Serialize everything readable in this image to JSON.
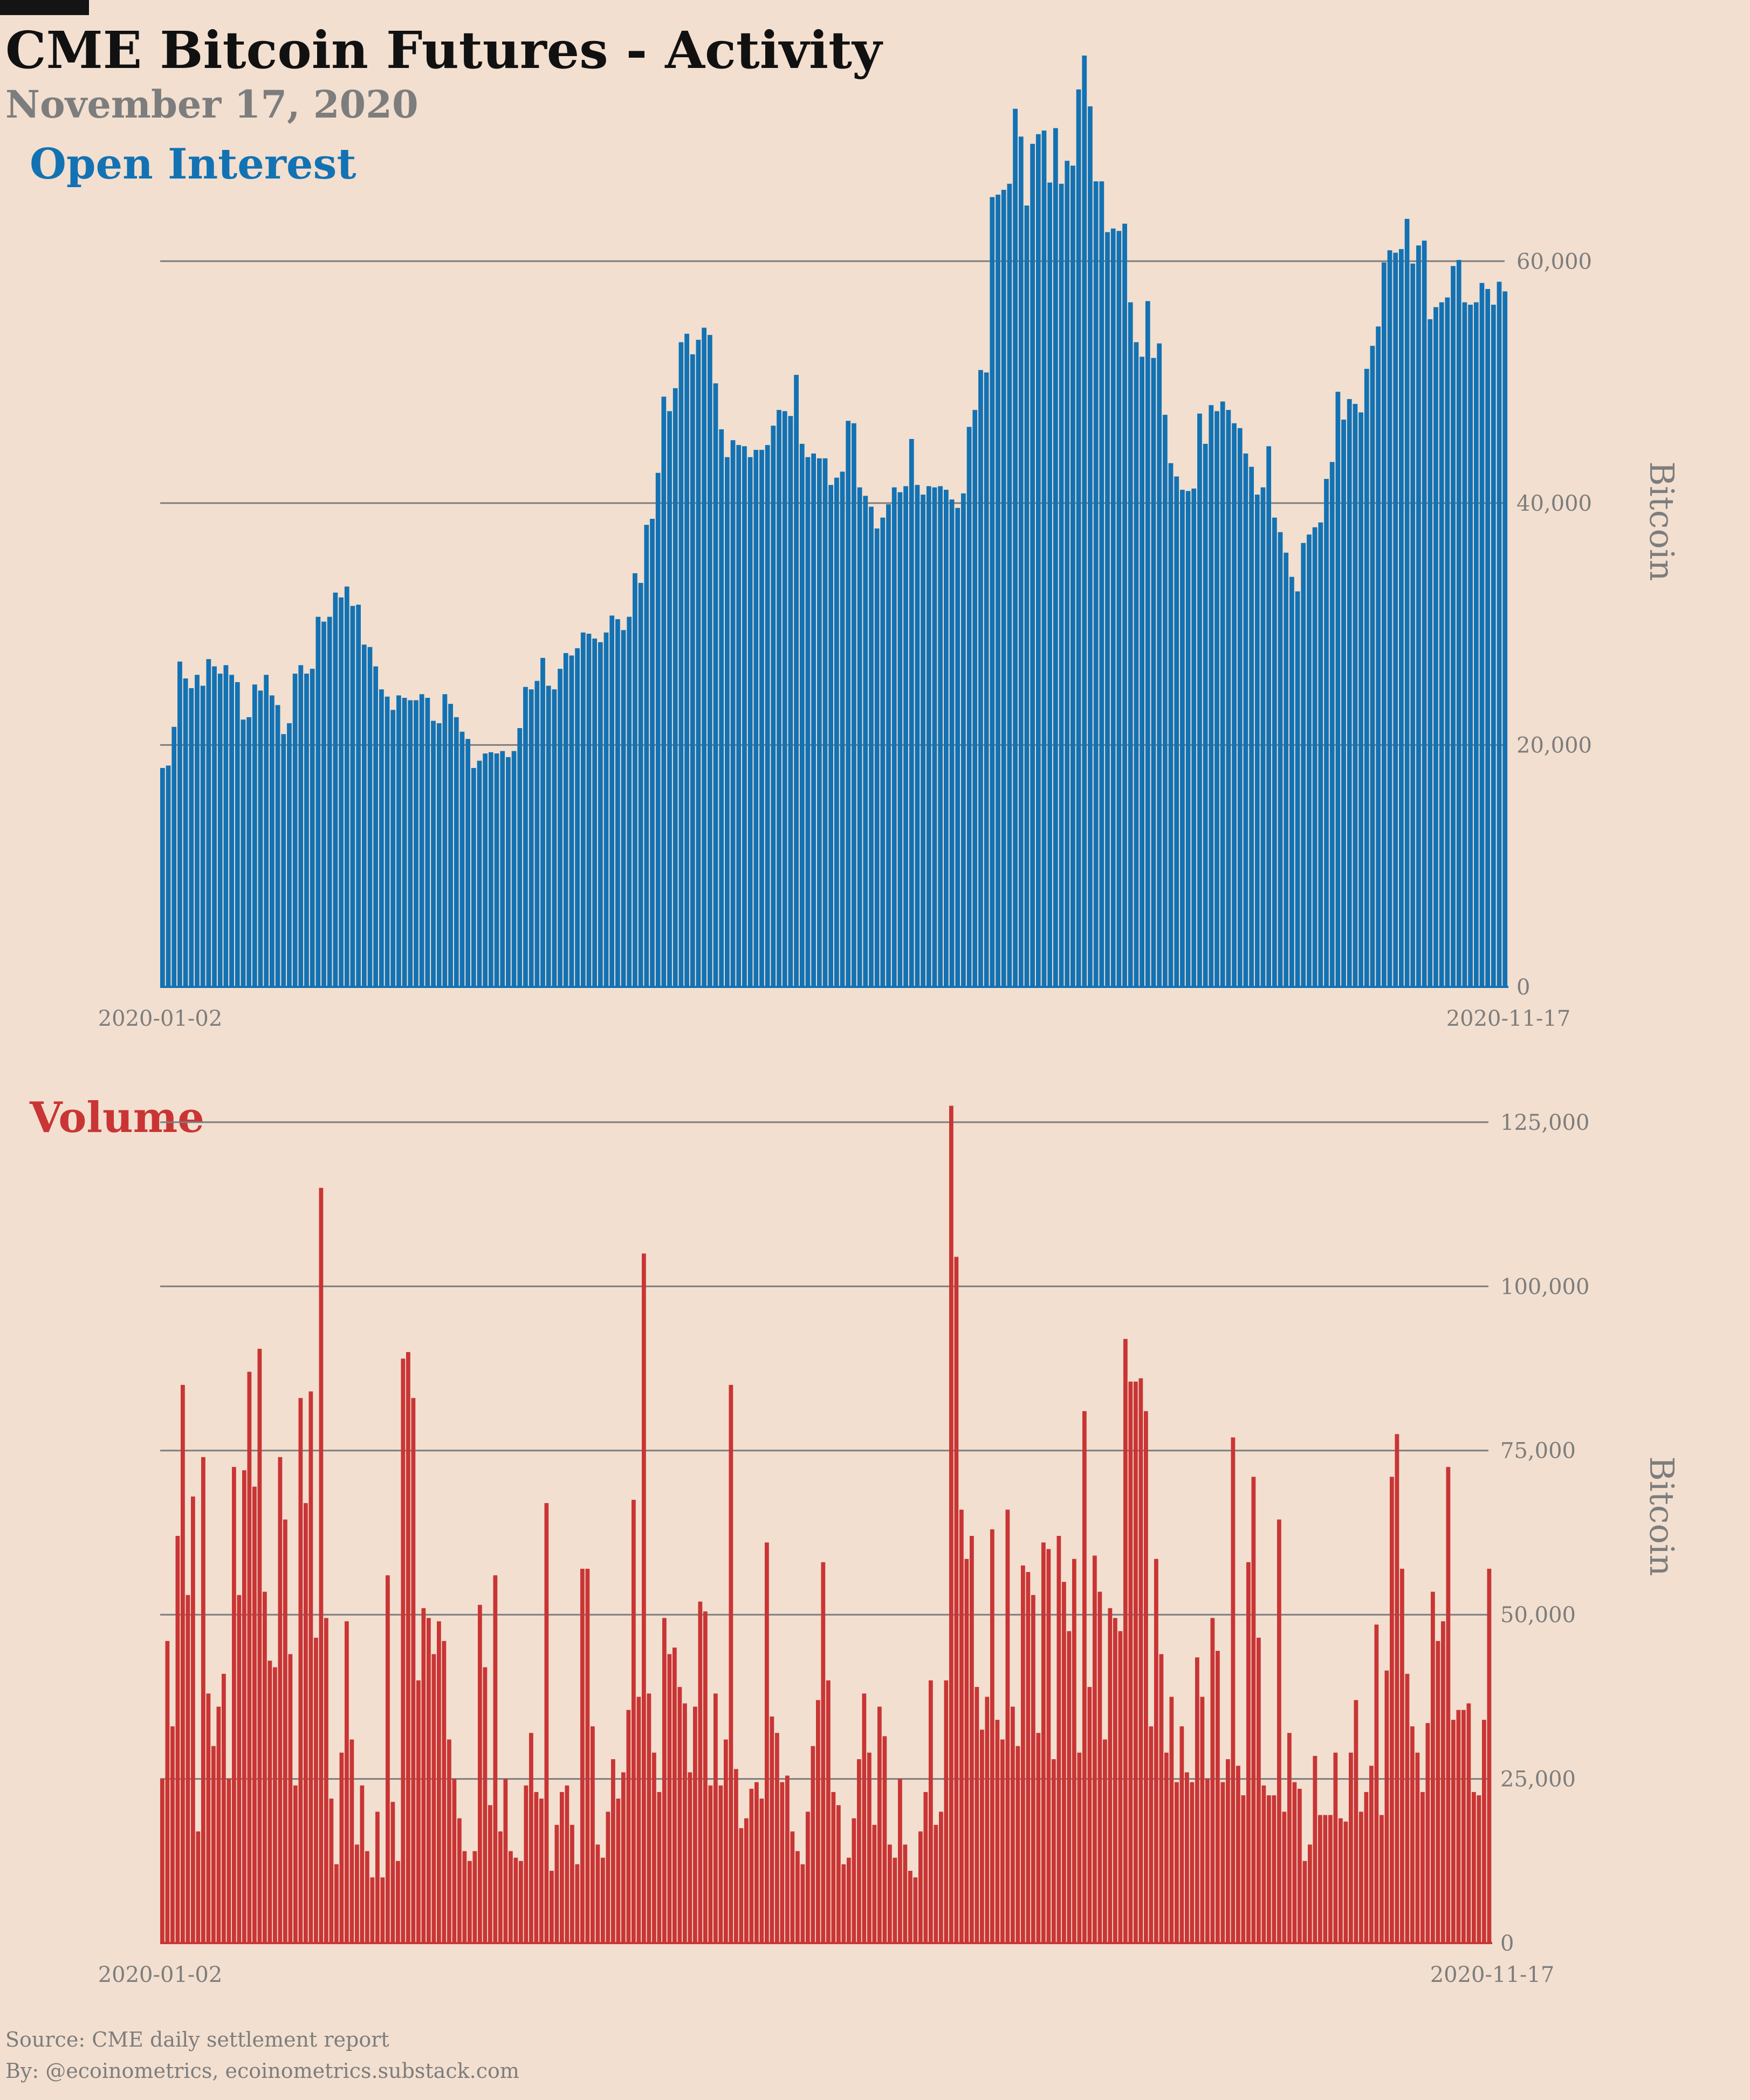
{
  "header": {
    "title": "CME Bitcoin Futures - Activity",
    "subtitle": "November 17, 2020"
  },
  "colors": {
    "background": "#f2dfcf",
    "open_interest": "#1372b3",
    "volume": "#c93535",
    "grid": "#7d7d7d",
    "muted_text": "#7d7d7d"
  },
  "chart_data": [
    {
      "type": "bar",
      "title": "Open Interest",
      "ylabel": "Bitcoin",
      "x_start_label": "2020-01-02",
      "x_end_label": "2020-11-17",
      "ylim": [
        0,
        77000
      ],
      "yticks": [
        0,
        20000,
        40000,
        60000
      ],
      "ytick_labels": [
        "0",
        "20,000",
        "40,000",
        "60,000"
      ],
      "grid": true,
      "values": [
        18100,
        18300,
        21500,
        26900,
        25500,
        24700,
        25800,
        24900,
        27100,
        26500,
        25900,
        26600,
        25800,
        25200,
        22100,
        22300,
        25000,
        24500,
        25800,
        24100,
        23300,
        20900,
        21800,
        25900,
        26600,
        25900,
        26300,
        30600,
        30200,
        30600,
        32600,
        32200,
        33100,
        31500,
        31600,
        28300,
        28100,
        26500,
        24600,
        24000,
        22900,
        24100,
        23900,
        23700,
        23700,
        24200,
        23900,
        22000,
        21800,
        24200,
        23400,
        22300,
        21100,
        20500,
        18100,
        18700,
        19300,
        19400,
        19300,
        19500,
        19000,
        19500,
        21400,
        24800,
        24600,
        25300,
        27200,
        24900,
        24600,
        26300,
        27600,
        27400,
        28000,
        29300,
        29200,
        28800,
        28500,
        29300,
        30700,
        30400,
        29500,
        30600,
        34200,
        33400,
        38200,
        38700,
        42500,
        48800,
        47600,
        49500,
        53300,
        54000,
        52300,
        53500,
        54500,
        53900,
        49900,
        46100,
        43800,
        45200,
        44800,
        44700,
        43800,
        44400,
        44400,
        44800,
        46400,
        47700,
        47600,
        47200,
        50600,
        44900,
        43800,
        44100,
        43700,
        43700,
        41500,
        42100,
        42600,
        46800,
        46600,
        41300,
        40600,
        39700,
        37900,
        38800,
        39900,
        41300,
        40900,
        41400,
        45300,
        41500,
        40700,
        41400,
        41300,
        41400,
        41100,
        40300,
        39600,
        40800,
        46300,
        47700,
        51000,
        50800,
        65300,
        65500,
        65900,
        66400,
        72600,
        70300,
        64600,
        69700,
        70500,
        70800,
        66500,
        71000,
        66400,
        68300,
        67900,
        74200,
        77000,
        72800,
        66600,
        66600,
        62400,
        62700,
        62500,
        63100,
        56600,
        53300,
        52100,
        56700,
        52000,
        53200,
        47300,
        43300,
        42200,
        41100,
        41000,
        41200,
        47400,
        44900,
        48100,
        47600,
        48400,
        47700,
        46600,
        46200,
        44100,
        43000,
        40700,
        41300,
        44700,
        38800,
        37600,
        35900,
        33900,
        32700,
        36700,
        37400,
        38000,
        38400,
        42000,
        43400,
        49200,
        46900,
        48600,
        48200,
        47500,
        51100,
        53000,
        54600,
        59900,
        60900,
        60700,
        61000,
        63500,
        59800,
        61300,
        61700,
        55200,
        56200,
        56600,
        57000,
        59600,
        60100,
        56600,
        56400,
        56600,
        58200,
        57700,
        56400,
        58300,
        57500
      ]
    },
    {
      "type": "bar",
      "title": "Volume",
      "ylabel": "Bitcoin",
      "x_start_label": "2020-01-02",
      "x_end_label": "2020-11-17",
      "ylim": [
        0,
        130000
      ],
      "yticks": [
        0,
        25000,
        50000,
        75000,
        100000,
        125000
      ],
      "ytick_labels": [
        "0",
        "25,000",
        "50,000",
        "75,000",
        "100,000",
        "125,000"
      ],
      "grid": true,
      "values": [
        25000,
        46000,
        33000,
        62000,
        85000,
        53000,
        68000,
        17000,
        74000,
        38000,
        30000,
        36000,
        41000,
        25000,
        72500,
        53000,
        72000,
        87000,
        69500,
        90500,
        53500,
        43000,
        42000,
        74000,
        64500,
        44000,
        24000,
        83000,
        67000,
        84000,
        46500,
        115000,
        49500,
        22000,
        12000,
        29000,
        49000,
        31000,
        15000,
        24000,
        14000,
        10000,
        20000,
        10000,
        56000,
        21500,
        12500,
        89000,
        90000,
        83000,
        40000,
        51000,
        49500,
        44000,
        49000,
        46000,
        31000,
        25000,
        19000,
        14000,
        12500,
        14000,
        51500,
        42000,
        21000,
        56000,
        17000,
        25000,
        14000,
        13000,
        12500,
        24000,
        32000,
        23000,
        22000,
        67000,
        11000,
        18000,
        23000,
        24000,
        18000,
        12000,
        57000,
        57000,
        33000,
        15000,
        13000,
        20000,
        28000,
        22000,
        26000,
        35500,
        67500,
        37500,
        105000,
        38000,
        29000,
        23000,
        49500,
        44000,
        45000,
        39000,
        36500,
        26000,
        36000,
        52000,
        50500,
        24000,
        38000,
        24000,
        31000,
        85000,
        26500,
        17500,
        19000,
        23500,
        24500,
        22000,
        61000,
        34500,
        32000,
        24500,
        25500,
        17000,
        14000,
        12000,
        20000,
        30000,
        37000,
        58000,
        40000,
        23000,
        21000,
        12000,
        13000,
        19000,
        28000,
        38000,
        29000,
        18000,
        36000,
        31500,
        15000,
        13000,
        25000,
        15000,
        11000,
        10000,
        17000,
        23000,
        40000,
        18000,
        20000,
        40000,
        127500,
        104500,
        66000,
        58500,
        62000,
        39000,
        32500,
        37500,
        63000,
        34000,
        31000,
        66000,
        36000,
        30000,
        57500,
        56500,
        53000,
        32000,
        61000,
        60000,
        28000,
        62000,
        55000,
        47500,
        58500,
        29000,
        81000,
        39000,
        59000,
        53500,
        31000,
        51000,
        49500,
        47500,
        92000,
        85500,
        85500,
        86000,
        81000,
        33000,
        58500,
        44000,
        29000,
        37500,
        24500,
        33000,
        26000,
        24500,
        43500,
        37500,
        25000,
        49500,
        44500,
        24500,
        28000,
        77000,
        27000,
        22500,
        58000,
        71000,
        46500,
        24000,
        22500,
        22500,
        64500,
        20000,
        32000,
        24500,
        23500,
        12500,
        15000,
        28500,
        19500,
        19500,
        19500,
        29000,
        19000,
        18500,
        29000,
        37000,
        20000,
        23000,
        27000,
        48500,
        19500,
        41500,
        71000,
        77500,
        57000,
        41000,
        33000,
        29000,
        23000,
        33500,
        53500,
        46000,
        49000,
        72500,
        34000,
        35500,
        35500,
        36500,
        23000,
        22500,
        34000,
        57000
      ]
    }
  ],
  "footer": {
    "source": "Source: CME daily settlement report",
    "byline": "By: @ecoinometrics, ecoinometrics.substack.com"
  }
}
